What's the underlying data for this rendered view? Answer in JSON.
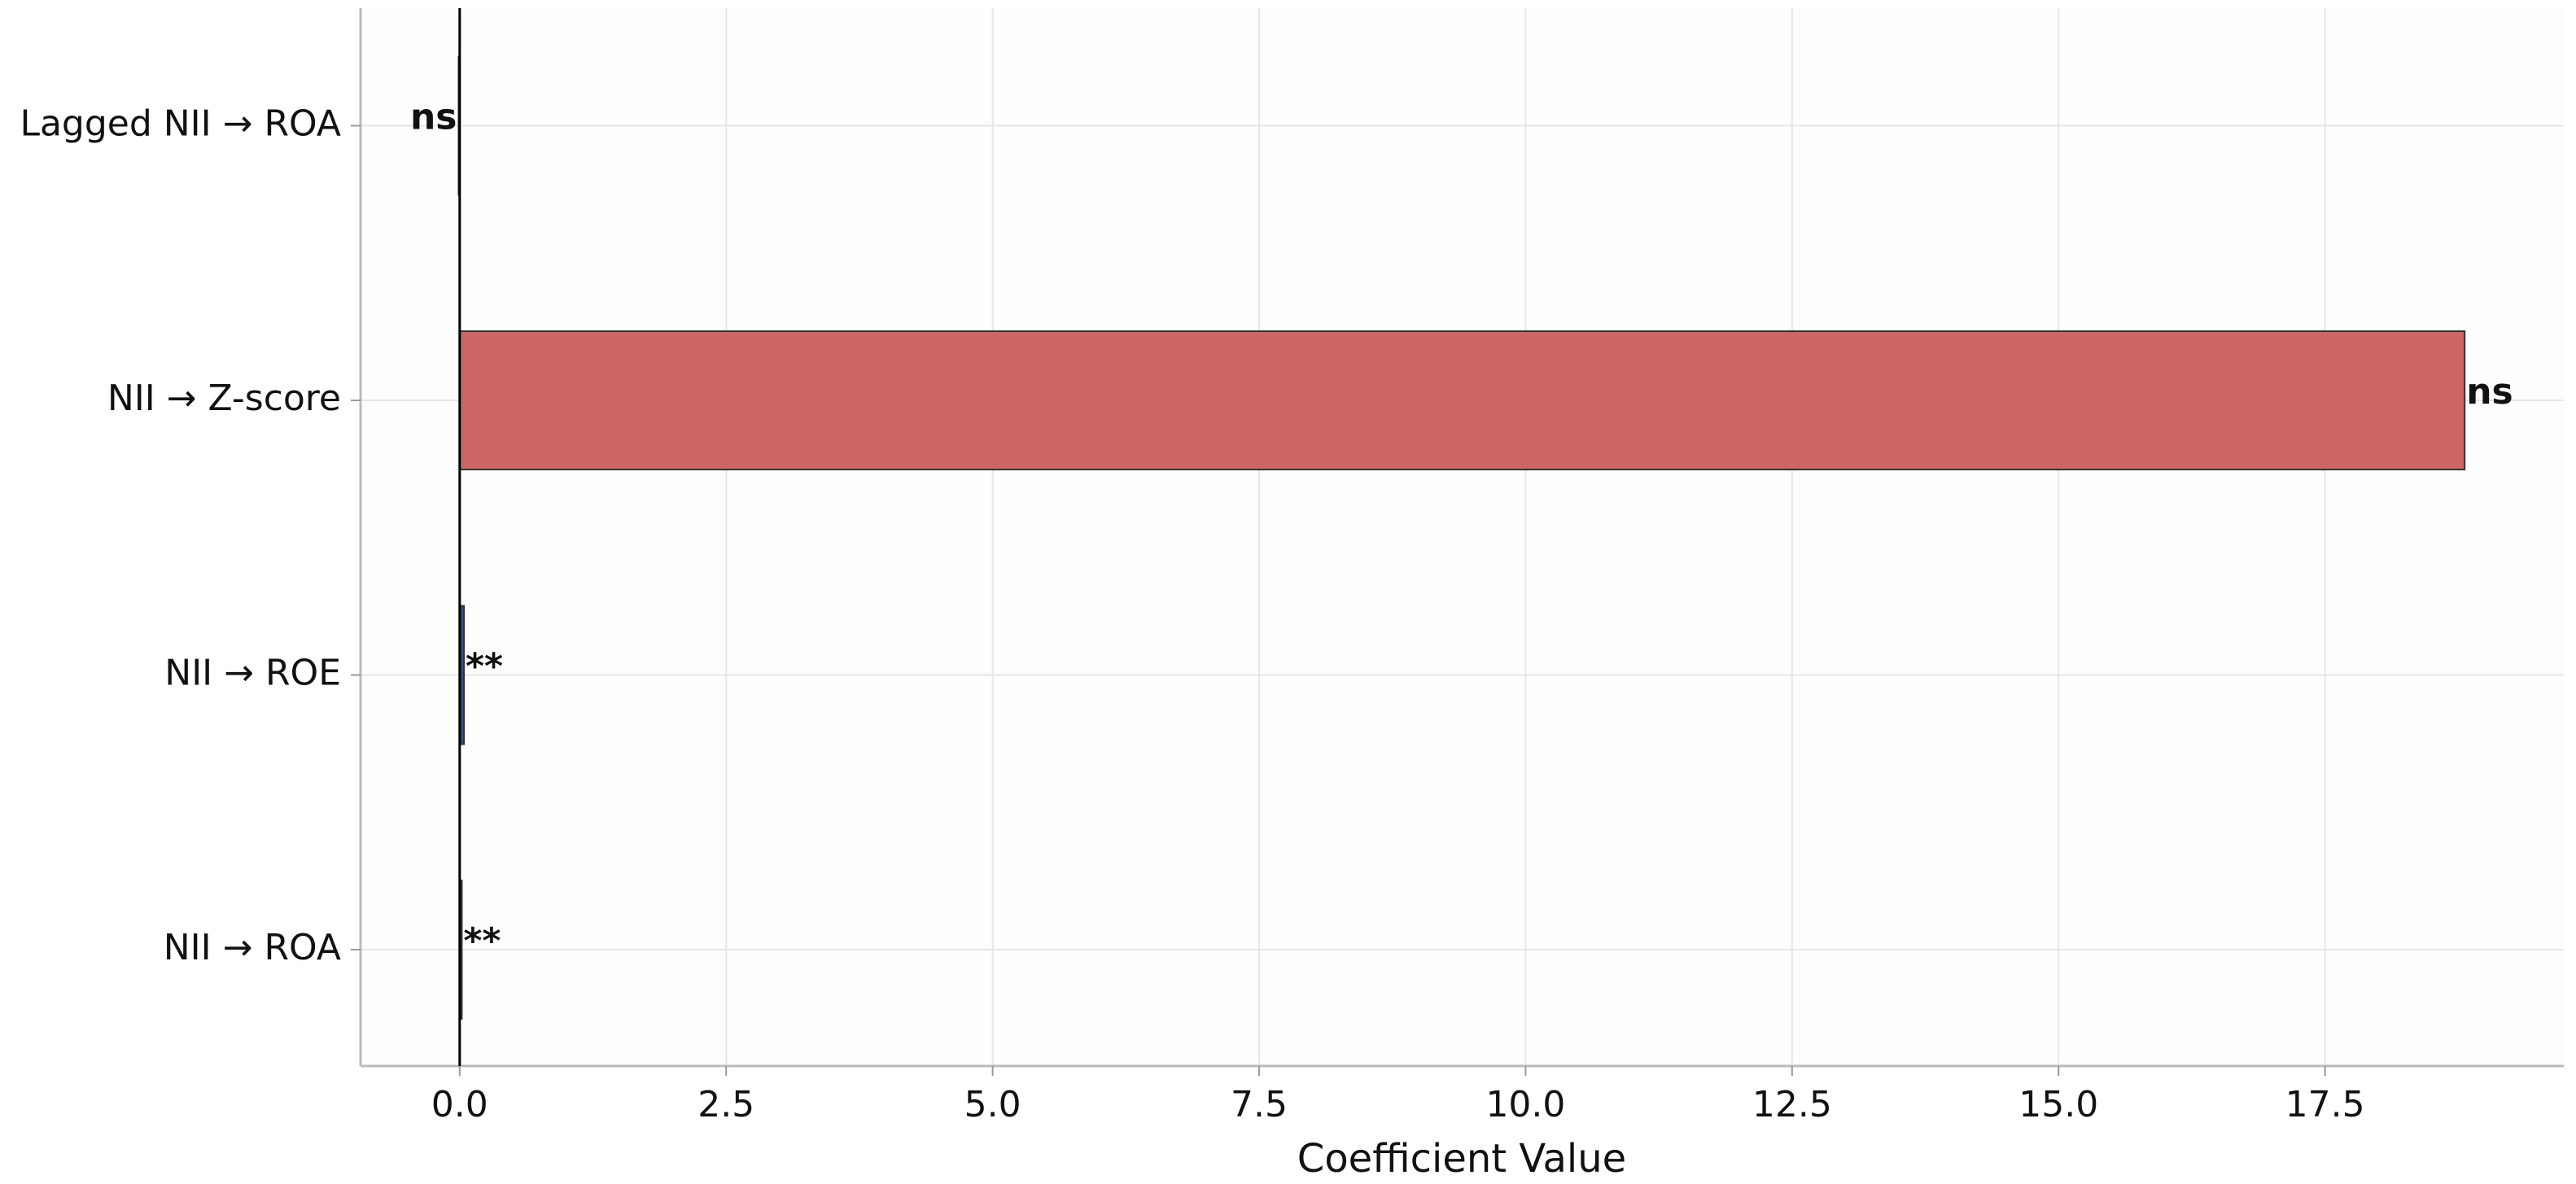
{
  "chart_data": {
    "type": "barh",
    "xlabel": "Coefficient Value",
    "categories": [
      "NII → ROA",
      "NII → ROE",
      "NII → Z-score",
      "Lagged NII → ROA"
    ],
    "values": [
      0.02,
      0.04,
      18.81,
      -0.01
    ],
    "colors": [
      "#3b4a7a",
      "#3b4a7a",
      "#cd6666",
      "#cd6666"
    ],
    "significance": [
      "**",
      "**",
      "ns",
      "ns"
    ],
    "xlim": [
      -0.93,
      19.74
    ],
    "xticks": [
      {
        "value": 0,
        "label": "0.0"
      },
      2.5,
      {
        "value": 5,
        "label": "5.0"
      },
      7.5,
      {
        "value": 10,
        "label": "10.0"
      },
      12.5,
      {
        "value": 15,
        "label": "15.0"
      },
      17.5
    ],
    "grid": true
  }
}
